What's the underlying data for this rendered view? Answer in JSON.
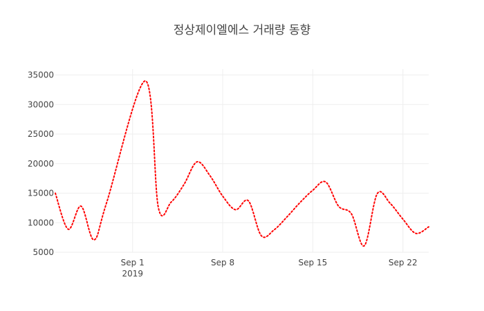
{
  "chart_data": {
    "type": "line",
    "title": "정상제이엘에스 거래량 동향",
    "xlabel": "",
    "ylabel": "",
    "x_ticks": [
      {
        "date": "2019-09-01",
        "label": "Sep 1",
        "sublabel": "2019"
      },
      {
        "date": "2019-09-08",
        "label": "Sep 8",
        "sublabel": ""
      },
      {
        "date": "2019-09-15",
        "label": "Sep 15",
        "sublabel": ""
      },
      {
        "date": "2019-09-22",
        "label": "Sep 22",
        "sublabel": ""
      }
    ],
    "xlim": [
      "2019-08-26",
      "2019-09-24"
    ],
    "ylim": [
      5000,
      36000
    ],
    "y_ticks": [
      5000,
      10000,
      15000,
      20000,
      25000,
      30000,
      35000
    ],
    "grid": true,
    "series": [
      {
        "color": "#ff0000",
        "line_style": "dotted",
        "points": [
          {
            "x": "2019-08-26",
            "y": 15000
          },
          {
            "x": "2019-08-27",
            "y": 8900
          },
          {
            "x": "2019-08-28",
            "y": 12800
          },
          {
            "x": "2019-08-29",
            "y": 7100
          },
          {
            "x": "2019-08-30",
            "y": 13500
          },
          {
            "x": "2019-09-02",
            "y": 34000
          },
          {
            "x": "2019-09-03",
            "y": 12600
          },
          {
            "x": "2019-09-04",
            "y": 13500
          },
          {
            "x": "2019-09-05",
            "y": 16500
          },
          {
            "x": "2019-09-06",
            "y": 20300
          },
          {
            "x": "2019-09-07",
            "y": 18000
          },
          {
            "x": "2019-09-08",
            "y": 14500
          },
          {
            "x": "2019-09-09",
            "y": 12200
          },
          {
            "x": "2019-09-10",
            "y": 13700
          },
          {
            "x": "2019-09-11",
            "y": 7800
          },
          {
            "x": "2019-09-12",
            "y": 8800
          },
          {
            "x": "2019-09-13",
            "y": 11000
          },
          {
            "x": "2019-09-14",
            "y": 13400
          },
          {
            "x": "2019-09-15",
            "y": 15500
          },
          {
            "x": "2019-09-16",
            "y": 16900
          },
          {
            "x": "2019-09-17",
            "y": 12800
          },
          {
            "x": "2019-09-18",
            "y": 11500
          },
          {
            "x": "2019-09-19",
            "y": 6100
          },
          {
            "x": "2019-09-20",
            "y": 14900
          },
          {
            "x": "2019-09-21",
            "y": 13300
          },
          {
            "x": "2019-09-22",
            "y": 10600
          },
          {
            "x": "2019-09-23",
            "y": 8200
          },
          {
            "x": "2019-09-24",
            "y": 9300
          }
        ]
      }
    ]
  }
}
